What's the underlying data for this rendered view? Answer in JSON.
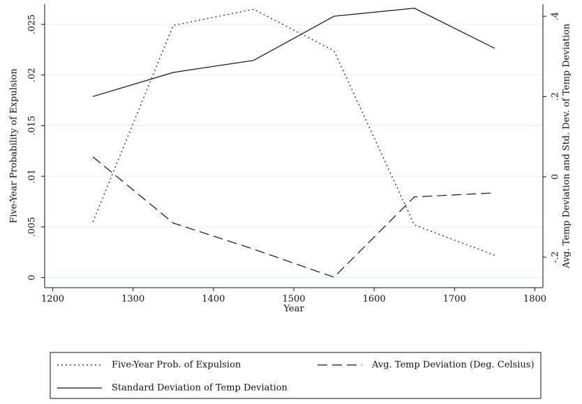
{
  "chart_data": {
    "type": "line",
    "x": [
      1250,
      1350,
      1450,
      1550,
      1650,
      1750
    ],
    "xlabel": "Year",
    "ylabel_left": "Five-Year Probability of Expulsion",
    "ylabel_right": "Avg. Temp Deviation and Std. Dev. of Temp Deviation",
    "xlim": [
      1190,
      1810
    ],
    "xticks": [
      "1200",
      "1300",
      "1400",
      "1500",
      "1600",
      "1700",
      "1800"
    ],
    "ylim_left": [
      -0.001,
      0.027
    ],
    "yticks_left": [
      "0",
      ".005",
      ".01",
      ".015",
      ".02",
      ".025"
    ],
    "ylim_right": [
      -0.276,
      0.43
    ],
    "yticks_right": [
      "-.2",
      "0",
      ".2",
      ".4"
    ],
    "grid": true,
    "legend_position": "bottom",
    "series": [
      {
        "name": "Five-Year Prob. of Expulsion",
        "axis": "left",
        "style": "dotted",
        "values": [
          0.0055,
          0.0249,
          0.0265,
          0.0224,
          0.0052,
          0.0022
        ]
      },
      {
        "name": "Avg. Temp Deviation (Deg. Celsius)",
        "axis": "right",
        "style": "dashed",
        "values": [
          0.05,
          -0.115,
          -0.18,
          -0.25,
          -0.05,
          -0.04
        ]
      },
      {
        "name": "Standard Deviation of Temp Deviation",
        "axis": "right",
        "style": "solid",
        "values": [
          0.2,
          0.26,
          0.29,
          0.4,
          0.42,
          0.32
        ]
      }
    ]
  }
}
